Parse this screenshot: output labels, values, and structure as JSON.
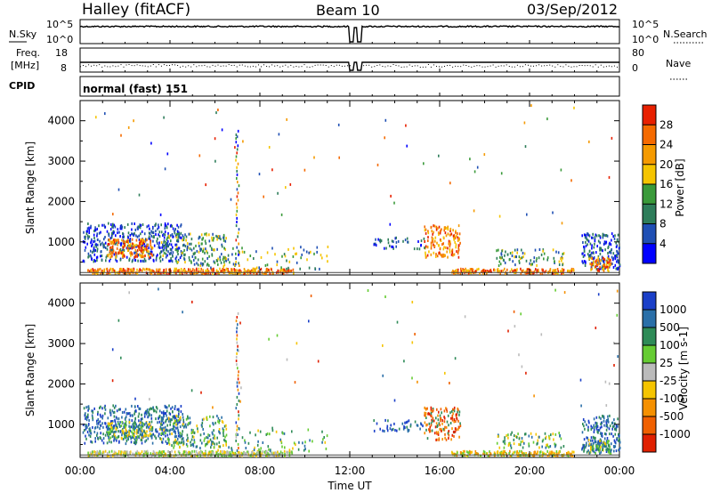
{
  "header": {
    "station": "Halley (fitACF)",
    "beam": "Beam 10",
    "date": "03/Sep/2012"
  },
  "noise_panel": {
    "left_label": "N.Sky",
    "right_label": "N.Search",
    "left_ticks": [
      "10^5",
      "10^0"
    ],
    "right_ticks": [
      "10^5",
      "10^0"
    ]
  },
  "freq_panel": {
    "left_label_1": "Freq.",
    "left_label_2": "[MHz]",
    "right_label": "Nave",
    "left_ticks": [
      "18",
      "8"
    ],
    "right_ticks": [
      "80",
      "0"
    ]
  },
  "cpid_panel": {
    "label": "CPID",
    "value": "normal (fast) 151"
  },
  "x_axis": {
    "label": "Time UT",
    "ticks": [
      "00:00",
      "04:00",
      "08:00",
      "12:00",
      "16:00",
      "20:00",
      "00:00"
    ]
  },
  "colors": {
    "power": [
      "#0000ff",
      "#1f4fb4",
      "#2e7d5a",
      "#3a9a3a",
      "#f5c400",
      "#f59a00",
      "#f56a00",
      "#e82000"
    ],
    "velocity": [
      "#1a3fc8",
      "#2a6fa8",
      "#2e8b57",
      "#66cc33",
      "#bbbbbb",
      "#f5c400",
      "#f59000",
      "#f06000",
      "#e02000"
    ]
  },
  "chart_data": [
    {
      "type": "heatmap",
      "name": "power",
      "ylabel": "Slant Range [km]",
      "xlabel": "",
      "x_range_hours": [
        0,
        24
      ],
      "ylim": [
        180,
        4500
      ],
      "y_ticks": [
        1000,
        2000,
        3000,
        4000
      ],
      "colorbar_label": "Power [dB]",
      "colorbar_range": [
        0,
        32
      ],
      "colorbar_ticks": [
        "4",
        "8",
        "12",
        "16",
        "20",
        "24",
        "28"
      ],
      "grid": false
    },
    {
      "type": "heatmap",
      "name": "velocity",
      "ylabel": "Slant Range [km]",
      "xlabel": "Time UT",
      "x_range_hours": [
        0,
        24
      ],
      "ylim": [
        180,
        4500
      ],
      "y_ticks": [
        1000,
        2000,
        3000,
        4000
      ],
      "colorbar_label": "Velocity [m s-1]",
      "colorbar_ticks": [
        "1000",
        "500",
        "100",
        "25",
        "-25",
        "-100",
        "-500",
        "-1000"
      ],
      "grid": false
    }
  ]
}
